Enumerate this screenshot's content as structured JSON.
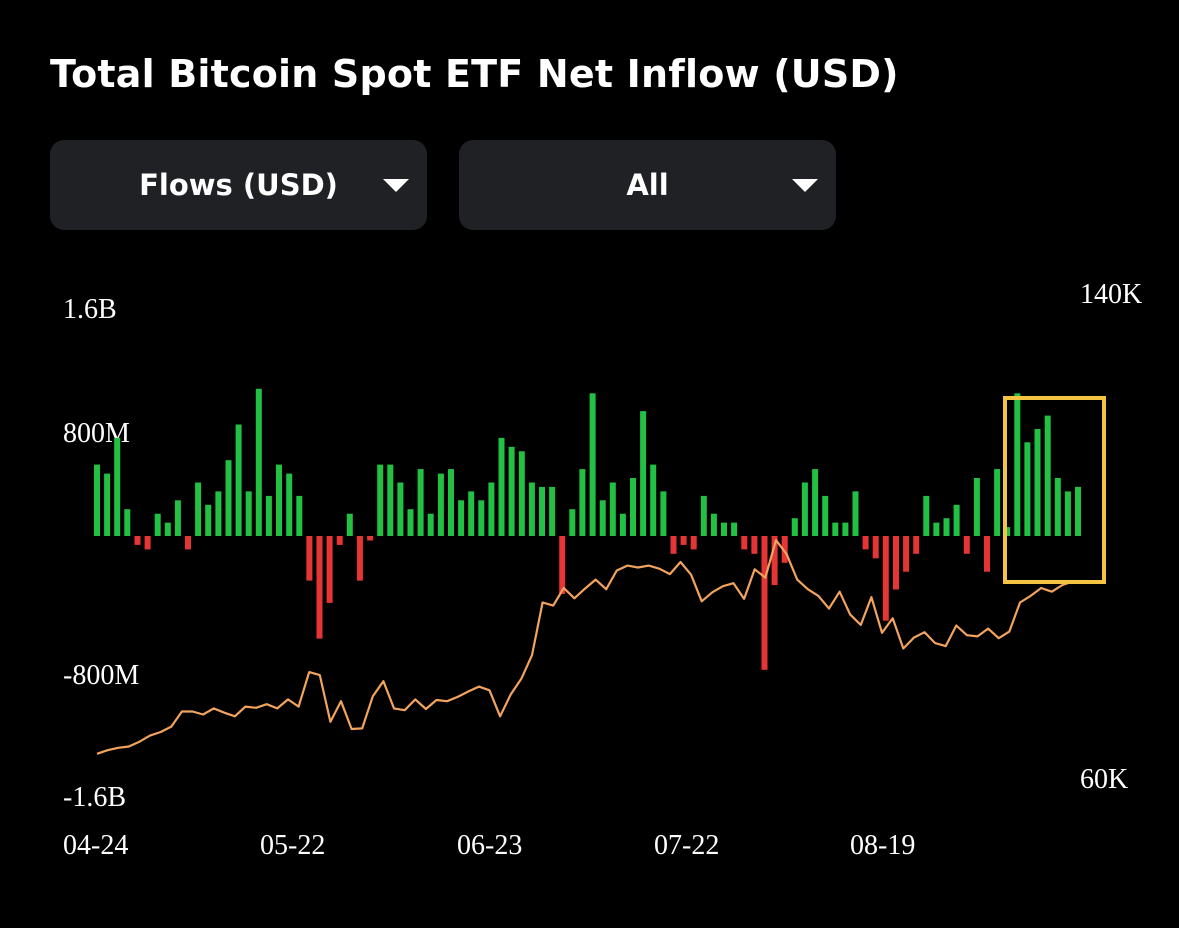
{
  "title": "Total Bitcoin Spot ETF Net Inflow (USD)",
  "controls": {
    "metric_selected": "Flows (USD)",
    "range_selected": "All"
  },
  "colors": {
    "inflow": "#22c043",
    "outflow": "#e63535",
    "price_line": "#f2a35e",
    "highlight_box": "#f4c543",
    "background": "#000000",
    "dropdown_bg": "#1f2125"
  },
  "chart_data": {
    "type": "bar",
    "title": "Total Bitcoin Spot ETF Net Inflow (USD)",
    "xlabel": "",
    "ylabel": "",
    "ylim": [
      -1600000000,
      1600000000
    ],
    "y2lim": [
      60000,
      140000
    ],
    "y_tick_labels": [
      "1.6B",
      "800M",
      "-800M",
      "-1.6B"
    ],
    "y2_tick_labels": [
      "140K",
      "60K"
    ],
    "x_tick_labels": [
      "04-24",
      "05-22",
      "06-23",
      "07-22",
      "08-19"
    ],
    "grid": false,
    "series": [
      {
        "values": [
          320,
          280,
          440,
          120,
          0,
          0,
          -40,
          0,
          0,
          320,
          0,
          440,
          0,
          320,
          0,
          -60,
          0,
          100,
          60,
          0,
          160,
          0,
          0,
          -60,
          0,
          0,
          240,
          140,
          200,
          0,
          340,
          0,
          500,
          200,
          0,
          660,
          180,
          0,
          0,
          320,
          280,
          180,
          0,
          0,
          0,
          0,
          -200,
          -220,
          -460,
          -300,
          0,
          0,
          -40,
          100,
          0,
          0,
          -200,
          -40,
          -20,
          0,
          0,
          320,
          320,
          240,
          120,
          0,
          300,
          100,
          0,
          0,
          280,
          0,
          0,
          300,
          160,
          0,
          0,
          0,
          0,
          0,
          0,
          200,
          160,
          0,
          0,
          0,
          0,
          0,
          240,
          440,
          400,
          0,
          0,
          0,
          380,
          240,
          220,
          0,
          0,
          0,
          0,
          0,
          220,
          0,
          0,
          -260,
          0,
          0,
          0,
          0,
          120,
          0,
          0,
          300,
          640,
          0,
          0,
          160,
          240,
          100,
          0,
          0,
          260,
          0,
          0,
          0,
          560,
          0,
          0,
          0,
          320,
          200,
          0,
          0,
          0,
          0,
          0,
          0,
          -80,
          0,
          -40,
          0,
          -60,
          0,
          0,
          0,
          0,
          0,
          180,
          0,
          100,
          60,
          60,
          -60,
          0,
          -80,
          -240,
          -600,
          -220,
          -120,
          0,
          0,
          0,
          0,
          0,
          0,
          0,
          0,
          80,
          240,
          300,
          0,
          180,
          60,
          0,
          60,
          200,
          0,
          0,
          0,
          0,
          0,
          0,
          0,
          0,
          0,
          0,
          -60,
          0,
          -100,
          -100,
          -380,
          -240,
          -160,
          0,
          0,
          -80,
          0,
          0,
          0,
          0,
          0,
          0,
          0,
          0,
          0,
          0,
          180,
          0,
          60,
          80,
          0,
          0,
          140,
          0,
          0,
          0,
          -80,
          0,
          0,
          0,
          260,
          0,
          0,
          -160,
          0,
          0,
          0,
          0,
          0,
          0,
          0,
          300,
          0,
          40,
          0,
          0,
          0,
          640,
          0,
          0,
          0,
          420,
          480,
          480,
          0,
          540,
          0,
          0,
          260,
          0,
          200,
          220,
          0
        ],
        "note": ""
      }
    ],
    "bars_millions": [
      320,
      280,
      440,
      120,
      -40,
      -60,
      100,
      60,
      160,
      -60,
      240,
      140,
      200,
      340,
      500,
      200,
      660,
      180,
      320,
      280,
      180,
      -200,
      -460,
      -300,
      -40,
      100,
      -200,
      -20,
      320,
      320,
      240,
      120,
      300,
      100,
      280,
      300,
      160,
      200,
      160,
      240,
      440,
      400,
      380,
      240,
      220,
      220,
      -260,
      120,
      300,
      640,
      160,
      240,
      100,
      260,
      560,
      320,
      200,
      -80,
      -40,
      -60,
      180,
      100,
      60,
      60,
      -60,
      -80,
      -600,
      -220,
      -120,
      80,
      240,
      300,
      180,
      60,
      60,
      200,
      -60,
      -100,
      -380,
      -240,
      -160,
      -80,
      180,
      60,
      80,
      140,
      -80,
      260,
      -160,
      300,
      40,
      640,
      420,
      480,
      540,
      260,
      200,
      220
    ],
    "price_usd": [
      64000,
      64600,
      65000,
      65200,
      66000,
      67000,
      67600,
      68500,
      71000,
      71000,
      70500,
      71500,
      70800,
      70200,
      71800,
      71600,
      72200,
      71500,
      73000,
      71800,
      77500,
      77000,
      69300,
      72700,
      68100,
      68200,
      73500,
      76000,
      71500,
      71200,
      73000,
      71400,
      72900,
      72700,
      73400,
      74300,
      75100,
      74500,
      70200,
      73800,
      76400,
      80300,
      89000,
      88500,
      91400,
      89700,
      91300,
      92800,
      91200,
      94300,
      95100,
      94800,
      95100,
      94600,
      93700,
      95700,
      93600,
      89200,
      90700,
      91700,
      92200,
      89600,
      94500,
      93100,
      99300,
      97000,
      92800,
      91200,
      90100,
      88000,
      90800,
      87000,
      85300,
      89900,
      84000,
      86400,
      81400,
      83200,
      84100,
      82300,
      81800,
      85200,
      83600,
      83400,
      84700,
      83100,
      84200,
      89000,
      90100,
      91400,
      90800,
      91900,
      92500
    ],
    "highlight_region": "last 7 bars"
  }
}
